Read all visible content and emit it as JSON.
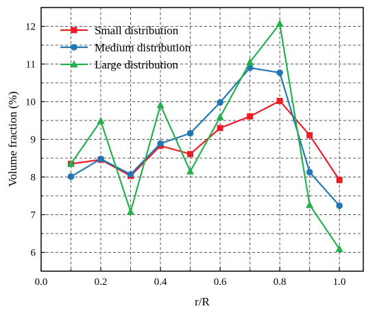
{
  "chart_data": {
    "type": "line",
    "title": "",
    "xlabel": "r/R",
    "ylabel": "Volume fraction (%)",
    "xlim": [
      0.0,
      1.08
    ],
    "ylim": [
      5.5,
      12.5
    ],
    "x_ticks": [
      0.0,
      0.2,
      0.4,
      0.6,
      0.8,
      1.0
    ],
    "x_tick_labels": [
      "0.0",
      "0.2",
      "0.4",
      "0.6",
      "0.8",
      "1.0"
    ],
    "y_ticks": [
      6,
      7,
      8,
      9,
      10,
      11,
      12
    ],
    "y_tick_labels": [
      "6",
      "7",
      "8",
      "9",
      "10",
      "11",
      "12"
    ],
    "grid": true,
    "grid_style": "dashed",
    "legend_position": "top-left",
    "x": [
      0.1,
      0.2,
      0.3,
      0.4,
      0.5,
      0.6,
      0.7,
      0.8,
      0.9,
      1.0
    ],
    "series": [
      {
        "name": "Small distribution",
        "color": "#ee1c24",
        "marker": "square",
        "values": [
          8.35,
          8.46,
          8.03,
          8.83,
          8.61,
          9.3,
          9.61,
          10.02,
          9.11,
          7.92
        ]
      },
      {
        "name": "Medium distribution",
        "color": "#1f77b4",
        "marker": "circle",
        "values": [
          8.01,
          8.48,
          8.07,
          8.89,
          9.16,
          9.98,
          10.9,
          10.77,
          8.13,
          7.24
        ]
      },
      {
        "name": "Large distribution",
        "color": "#22b14c",
        "marker": "triangle",
        "values": [
          8.35,
          9.49,
          7.08,
          9.91,
          8.15,
          9.59,
          11.05,
          12.07,
          7.26,
          6.09
        ]
      }
    ]
  }
}
